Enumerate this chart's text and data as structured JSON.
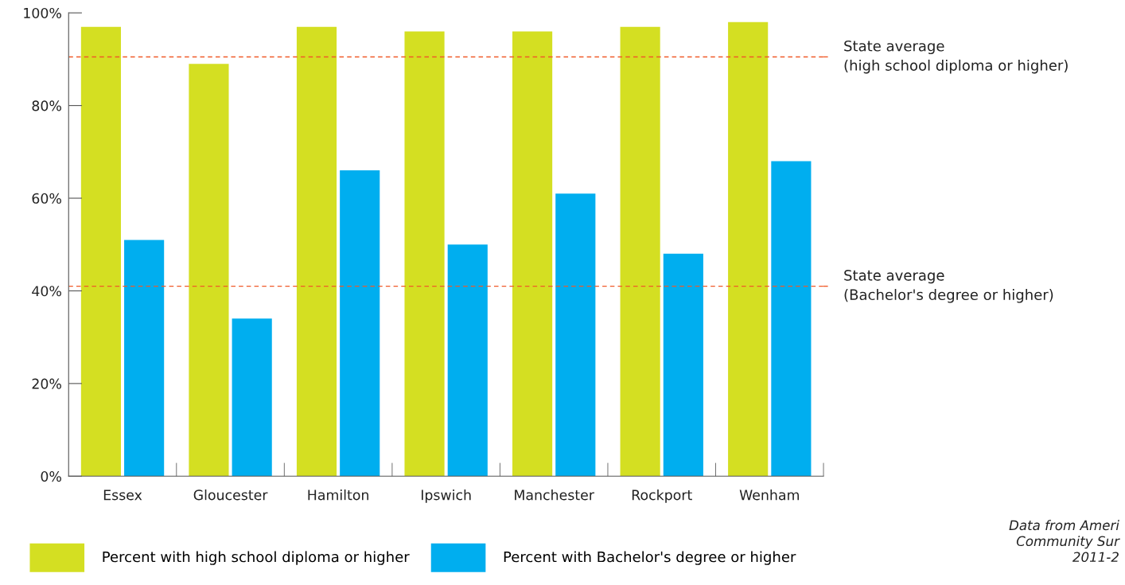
{
  "chart_data": {
    "type": "bar",
    "categories": [
      "Essex",
      "Gloucester",
      "Hamilton",
      "Ipswich",
      "Manchester",
      "Rockport",
      "Wenham"
    ],
    "series": [
      {
        "name": "Percent with high school diploma or higher",
        "color": "#d4df22",
        "values": [
          97,
          89,
          97,
          96,
          96,
          97,
          98
        ]
      },
      {
        "name": "Percent with Bachelor's degree or higher",
        "color": "#00aeef",
        "values": [
          51,
          34,
          66,
          50,
          61,
          48,
          68
        ]
      }
    ],
    "ylim": [
      0,
      100
    ],
    "yticks": [
      {
        "value": 0,
        "label": "0%"
      },
      {
        "value": 20,
        "label": "20%"
      },
      {
        "value": 40,
        "label": "40%"
      },
      {
        "value": 60,
        "label": "60%"
      },
      {
        "value": 80,
        "label": "80%"
      },
      {
        "value": 100,
        "label": "100%"
      }
    ],
    "ref_lines": [
      {
        "axis": "y",
        "value": 90.5,
        "label": "State average\n(high school diploma or higher)",
        "color": "#f05a28",
        "line_style": "dashed"
      },
      {
        "axis": "y",
        "value": 41,
        "label": "State average\n(Bachelor's degree or higher)",
        "color": "#f05a28",
        "line_style": "dashed"
      }
    ],
    "annotations": [
      "Data from Ameri\nCommunity Sur\n2011-2"
    ],
    "grid": false,
    "legend": "bottom left"
  }
}
